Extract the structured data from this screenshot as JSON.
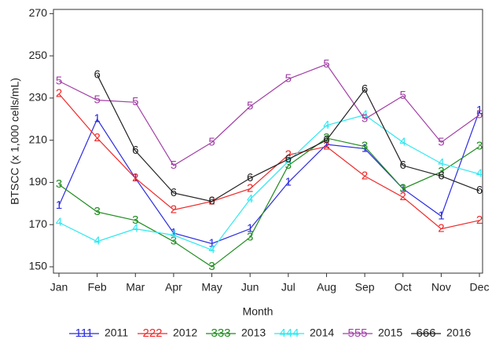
{
  "chart_data": {
    "type": "line",
    "x_label": "Month",
    "y_label": "BTSCC (x 1,000 cells/mL)",
    "categories": [
      "Jan",
      "Feb",
      "Mar",
      "Apr",
      "May",
      "Jun",
      "Jul",
      "Aug",
      "Sep",
      "Oct",
      "Nov",
      "Dec"
    ],
    "ylim": [
      147,
      272
    ],
    "yticks": [
      150,
      170,
      190,
      210,
      230,
      250,
      270
    ],
    "series": [
      {
        "name": "2011",
        "symbol": "111",
        "marker": "1",
        "color": "#2b2be0",
        "values": [
          179,
          220,
          192,
          166,
          161,
          168,
          190,
          208,
          206,
          187,
          174,
          224
        ]
      },
      {
        "name": "2012",
        "symbol": "222",
        "marker": "2",
        "color": "#f02828",
        "values": [
          232,
          211,
          192,
          177,
          181,
          187,
          203,
          207,
          193,
          183,
          168,
          172
        ]
      },
      {
        "name": "2013",
        "symbol": "333",
        "marker": "3",
        "color": "#1f8c1f",
        "values": [
          189,
          176,
          172,
          162,
          150,
          164,
          198,
          211,
          207,
          187,
          195,
          207
        ]
      },
      {
        "name": "2014",
        "symbol": "444",
        "marker": "4",
        "color": "#2ee8f0",
        "values": [
          171,
          162,
          168,
          165,
          158,
          182,
          200,
          217,
          222,
          209,
          199,
          194
        ]
      },
      {
        "name": "2015",
        "symbol": "555",
        "marker": "5",
        "color": "#a23fa6",
        "values": [
          238,
          229,
          228,
          198,
          209,
          226,
          239,
          246,
          220,
          231,
          209,
          222
        ]
      },
      {
        "name": "2016",
        "symbol": "666",
        "marker": "6",
        "color": "#222222",
        "values": [
          null,
          241,
          205,
          185,
          181,
          192,
          201,
          210,
          234,
          198,
          193,
          186
        ]
      }
    ]
  }
}
